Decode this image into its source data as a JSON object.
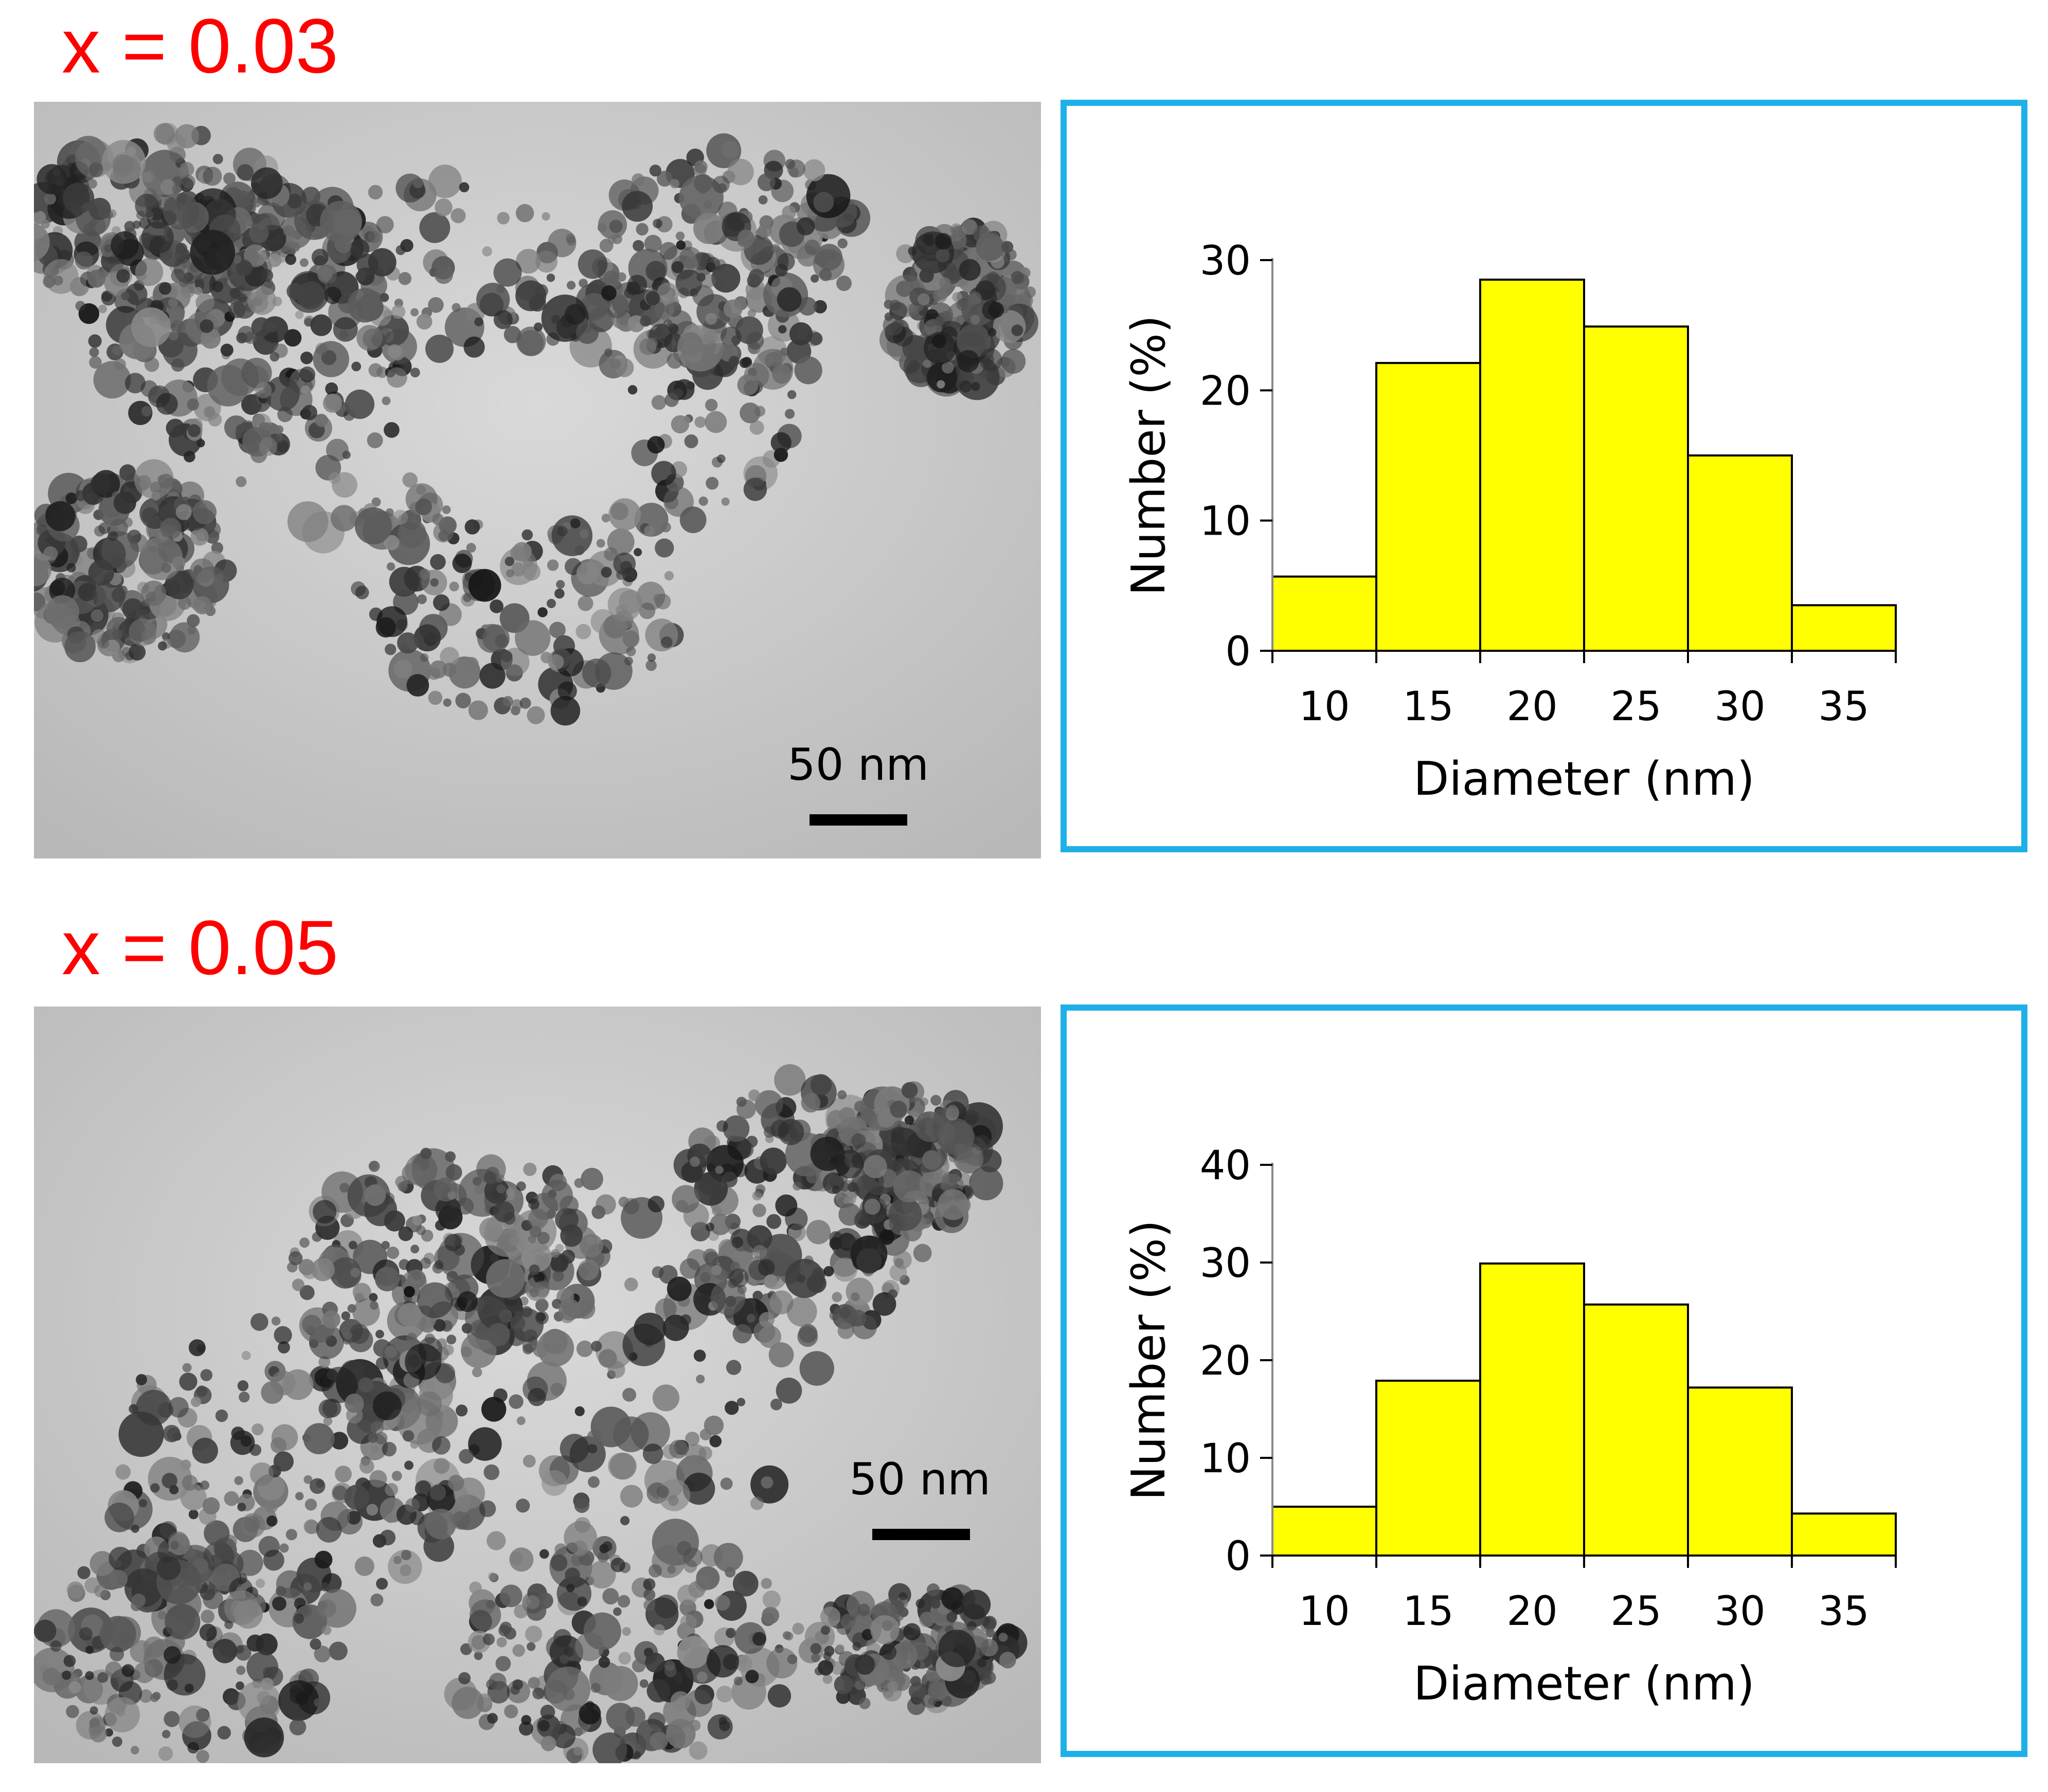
{
  "panels": [
    {
      "label": "x = 0.03",
      "tem_image": {
        "scale_bar_text": "50 nm"
      }
    },
    {
      "label": "x = 0.05",
      "tem_image": {
        "scale_bar_text": "50 nm"
      }
    }
  ],
  "colors": {
    "label": "#ff0000",
    "frame": "#1fb0e8",
    "bar_fill": "#ffff00",
    "bar_edge": "#000000"
  },
  "chart_data": [
    {
      "type": "bar",
      "categories": [
        "10",
        "15",
        "20",
        "25",
        "30",
        "35"
      ],
      "values": [
        5.7,
        22.1,
        28.5,
        24.9,
        15.0,
        3.5
      ],
      "xlabel": "Diameter (nm)",
      "ylabel": "Number (%)",
      "yticks": [
        0,
        10,
        20,
        30
      ],
      "ylim": [
        0,
        30
      ],
      "grid": false
    },
    {
      "type": "bar",
      "categories": [
        "10",
        "15",
        "20",
        "25",
        "30",
        "35"
      ],
      "values": [
        5.0,
        17.9,
        29.9,
        25.7,
        17.2,
        4.3
      ],
      "xlabel": "Diameter (nm)",
      "ylabel": "Number (%)",
      "yticks": [
        0,
        10,
        20,
        30,
        40
      ],
      "ylim": [
        0,
        40
      ],
      "grid": false
    }
  ]
}
